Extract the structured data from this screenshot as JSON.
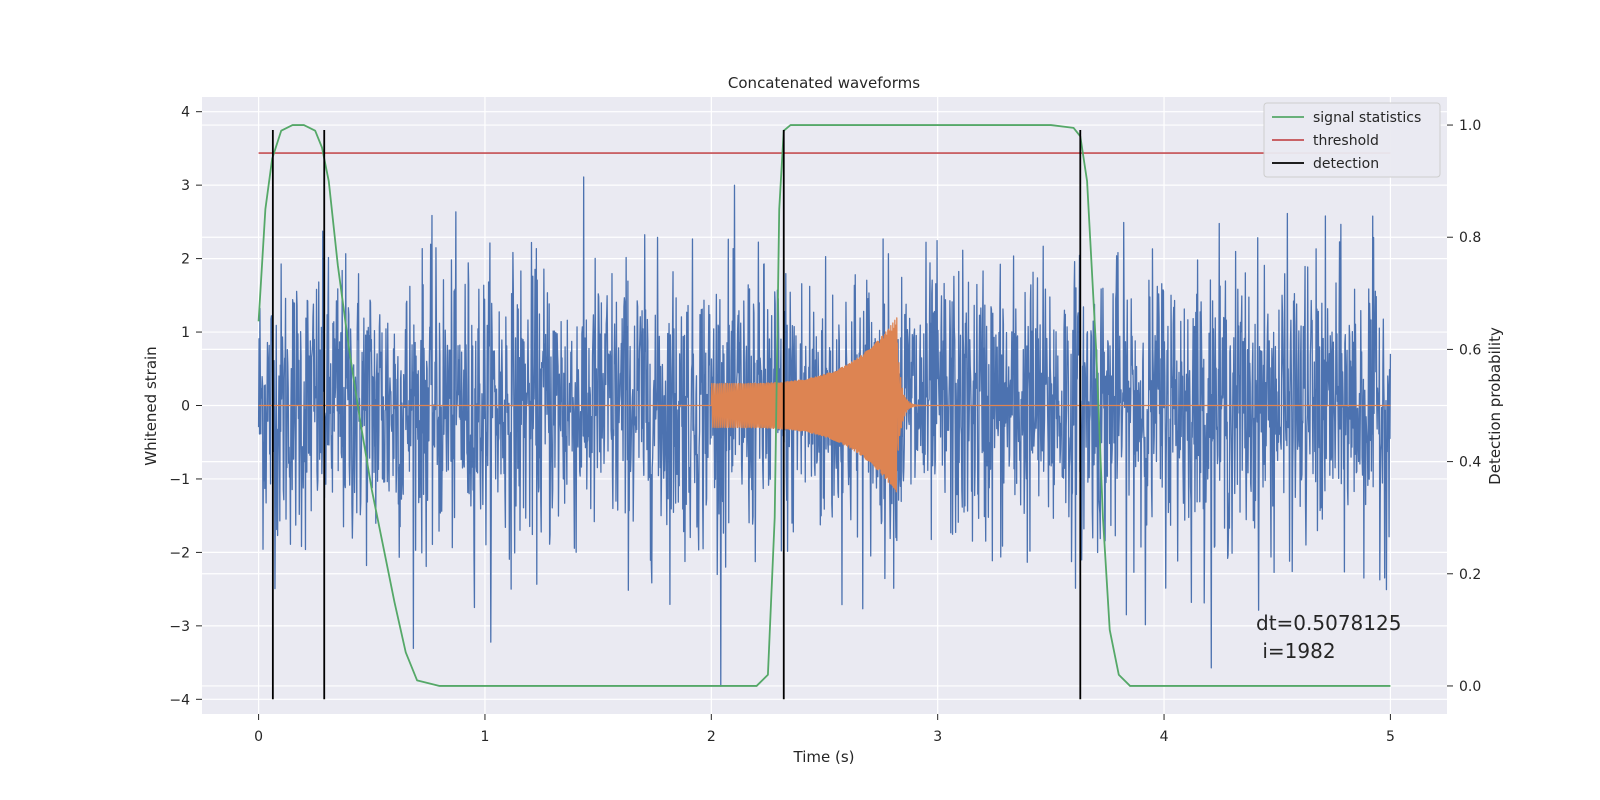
{
  "chart_data": {
    "type": "line",
    "title": "Concatenated waveforms",
    "xlabel": "Time (s)",
    "ylabel": "Whitened strain",
    "y2label": "Detection probability",
    "xlim": [
      -0.25,
      5.25
    ],
    "ylim": [
      -4.2,
      4.2
    ],
    "y2lim": [
      -0.05,
      1.05
    ],
    "xticks": [
      0,
      1,
      2,
      3,
      4,
      5
    ],
    "yticks": [
      -4,
      -3,
      -2,
      -1,
      0,
      1,
      2,
      3,
      4
    ],
    "y2ticks": [
      0.0,
      0.2,
      0.4,
      0.6,
      0.8,
      1.0
    ],
    "xtick_labels": [
      "0",
      "1",
      "2",
      "3",
      "4",
      "5"
    ],
    "ytick_labels": [
      "−4",
      "−3",
      "−2",
      "−1",
      "0",
      "1",
      "2",
      "3",
      "4"
    ],
    "y2tick_labels": [
      "0.0",
      "0.2",
      "0.4",
      "0.6",
      "0.8",
      "1.0"
    ],
    "grid": true,
    "legend_placement": "top-right",
    "colors": {
      "strain": "#4c72b0",
      "template": "#dd8452",
      "signal_statistics": "#55a868",
      "threshold": "#c44e52",
      "detection": "#000000",
      "axes_background": "#eaeaf2",
      "grid": "#ffffff"
    },
    "series": [
      {
        "name": "signal statistics",
        "axis": "y2",
        "x": [
          0.0,
          0.03,
          0.06,
          0.1,
          0.15,
          0.2,
          0.25,
          0.28,
          0.31,
          0.35,
          0.4,
          0.45,
          0.5,
          0.55,
          0.6,
          0.65,
          0.7,
          0.8,
          1.0,
          1.5,
          2.0,
          2.2,
          2.25,
          2.28,
          2.3,
          2.32,
          2.35,
          2.4,
          3.0,
          3.5,
          3.6,
          3.63,
          3.66,
          3.7,
          3.73,
          3.76,
          3.8,
          3.85,
          4.0,
          4.5,
          5.0
        ],
        "y": [
          0.65,
          0.85,
          0.94,
          0.99,
          1.0,
          1.0,
          0.99,
          0.96,
          0.9,
          0.75,
          0.6,
          0.47,
          0.35,
          0.25,
          0.15,
          0.06,
          0.01,
          0.0,
          0.0,
          0.0,
          0.0,
          0.0,
          0.02,
          0.3,
          0.85,
          0.99,
          1.0,
          1.0,
          1.0,
          1.0,
          0.995,
          0.98,
          0.9,
          0.6,
          0.3,
          0.1,
          0.02,
          0.0,
          0.0,
          0.0,
          0.0
        ]
      },
      {
        "name": "threshold",
        "axis": "y2",
        "x": [
          0.0,
          5.0
        ],
        "y": [
          0.95,
          0.95
        ]
      },
      {
        "name": "detection",
        "axis": "y",
        "x_lines": [
          0.063,
          0.29,
          2.32,
          3.63
        ],
        "y_range": [
          -4.0,
          3.75
        ]
      }
    ],
    "strain": {
      "axis": "y",
      "x_range": [
        0.0,
        5.0
      ],
      "samples": 2560
    },
    "template": {
      "axis": "y",
      "x_start": 2.0,
      "x_merger": 2.82,
      "x_end": 3.0,
      "amp_start": 0.3,
      "amp_peak": 1.2
    },
    "annotation": [
      "dt=0.5078125",
      " i=1982"
    ]
  }
}
